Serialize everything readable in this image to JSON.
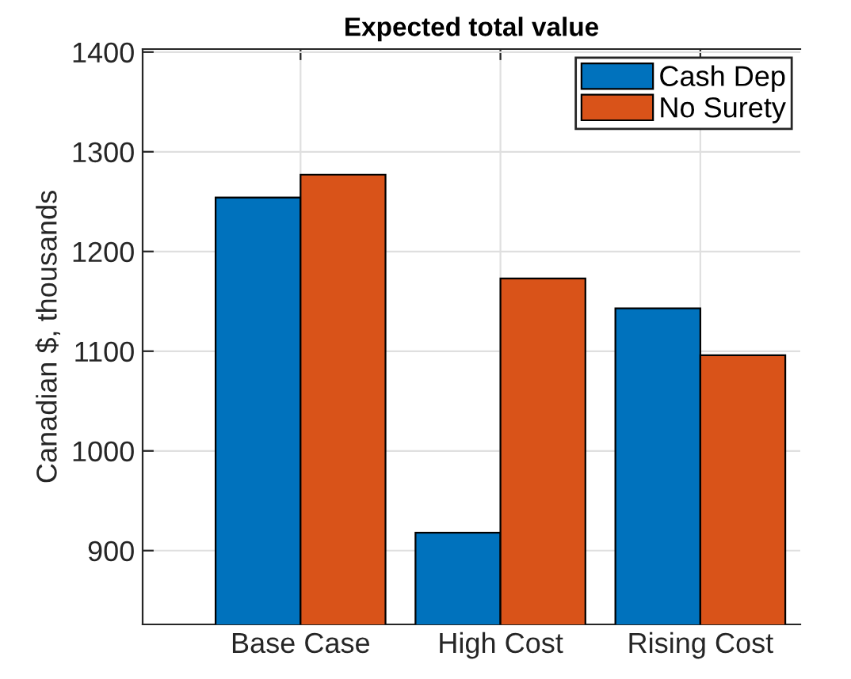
{
  "chart_data": {
    "type": "bar",
    "title": "Expected total value",
    "ylabel": "Canadian $, thousands",
    "categories": [
      "Base Case",
      "High Cost",
      "Rising Cost"
    ],
    "series": [
      {
        "name": "Cash Dep",
        "color": "#0072bd",
        "values": [
          1254,
          918,
          1143
        ]
      },
      {
        "name": "No Surety",
        "color": "#d95319",
        "values": [
          1277,
          1173,
          1096
        ]
      }
    ],
    "ylim": [
      826,
      1403
    ],
    "yticks": [
      900,
      1000,
      1100,
      1200,
      1300,
      1400
    ],
    "grid": true,
    "legend": "top right"
  }
}
